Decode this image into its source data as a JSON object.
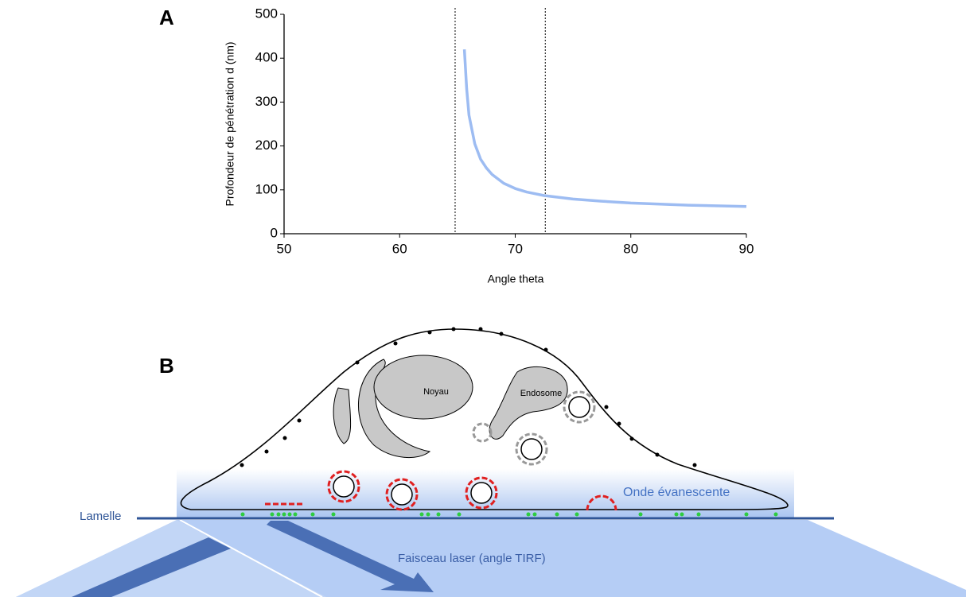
{
  "chart_data": {
    "type": "line",
    "panel": "A",
    "xlabel": "Angle theta",
    "ylabel": "Profondeur de pénétration d (nm)",
    "x": [
      65.6,
      65.8,
      66,
      66.5,
      67,
      67.5,
      68,
      69,
      70,
      71,
      72.5,
      75,
      77.5,
      80,
      85,
      90
    ],
    "values": [
      420,
      330,
      270,
      205,
      170,
      150,
      135,
      115,
      103,
      95,
      87,
      79,
      74,
      70,
      65,
      62
    ],
    "color": "#9dbcf2",
    "xlim": [
      50,
      90
    ],
    "xticks": [
      50,
      60,
      70,
      80,
      90
    ],
    "ylim": [
      0,
      500
    ],
    "yticks": [
      0,
      100,
      200,
      300,
      400,
      500
    ],
    "vlines": [
      64.8,
      72.6
    ]
  },
  "diagram": {
    "panel": "B",
    "nucleus": "Noyau",
    "endosome": "Endosome",
    "wave": "Onde évanescente",
    "coverslip": "Lamelle",
    "beam": "Faisceau laser (angle TIRF)"
  }
}
